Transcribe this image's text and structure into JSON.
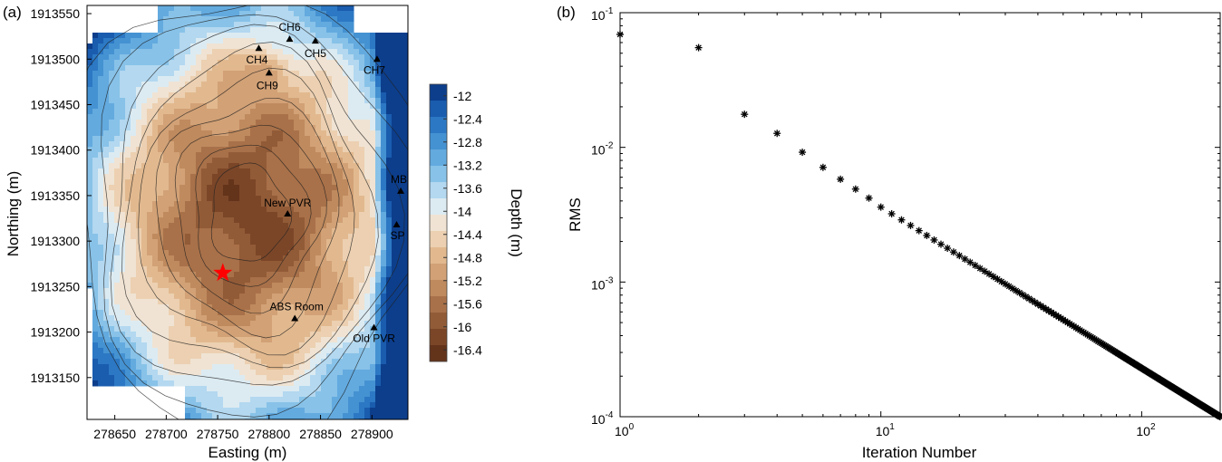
{
  "panels": {
    "a_label": "(a)",
    "b_label": "(b)"
  },
  "chart_data": [
    {
      "type": "heatmap",
      "panel": "(a)",
      "xlabel": "Easting (m)",
      "ylabel": "Northing (m)",
      "x_ticks": [
        "278650",
        "278700",
        "278750",
        "278800",
        "278850",
        "278900"
      ],
      "x_tick_values": [
        278650,
        278700,
        278750,
        278800,
        278850,
        278900
      ],
      "y_ticks": [
        "1913550",
        "1913500",
        "1913450",
        "1913400",
        "1913350",
        "1913300",
        "1913250",
        "1913200",
        "1913150"
      ],
      "y_tick_values": [
        1913550,
        1913500,
        1913450,
        1913400,
        1913350,
        1913300,
        1913250,
        1913200,
        1913150
      ],
      "xlim": [
        278623,
        278935
      ],
      "ylim": [
        1913104,
        1913559
      ],
      "colorbar": {
        "label": "Depth (m)",
        "ticks": [
          "-12",
          "-12.4",
          "-12.8",
          "-13.2",
          "-13.6",
          "-14",
          "-14.4",
          "-14.8",
          "-15.2",
          "-15.6",
          "-16",
          "-16.4"
        ],
        "range": [
          -16.6,
          -11.8
        ],
        "colors": [
          "#0c3e8c",
          "#1a5cae",
          "#2c78c4",
          "#4592d2",
          "#63aadf",
          "#88c2e8",
          "#b3d8f0",
          "#dcebf2",
          "#f0e3d3",
          "#ecd0b1",
          "#e2b98f",
          "#d2a176",
          "#bf8a5e",
          "#a97149",
          "#925b37",
          "#7b4628",
          "#63331a"
        ]
      },
      "sites": [
        {
          "name": "CH6",
          "x": 278820,
          "y": 1913522
        },
        {
          "name": "CH5",
          "x": 278845,
          "y": 1913520
        },
        {
          "name": "CH4",
          "x": 278790,
          "y": 1913512
        },
        {
          "name": "CH7",
          "x": 278905,
          "y": 1913500
        },
        {
          "name": "CH9",
          "x": 278800,
          "y": 1913485
        },
        {
          "name": "MB",
          "x": 278928,
          "y": 1913355
        },
        {
          "name": "New PVR",
          "x": 278818,
          "y": 1913330
        },
        {
          "name": "SP",
          "x": 278924,
          "y": 1913318
        },
        {
          "name": "ABS Room",
          "x": 278825,
          "y": 1913215
        },
        {
          "name": "Old PVR",
          "x": 278902,
          "y": 1913205
        }
      ],
      "star": {
        "x": 278755,
        "y": 1913265,
        "color": "#ff0000"
      }
    },
    {
      "type": "scatter",
      "panel": "(b)",
      "xlabel": "Iteration Number",
      "ylabel": "RMS",
      "xscale": "log",
      "yscale": "log",
      "xlim": [
        1,
        200
      ],
      "ylim": [
        0.0001,
        0.1
      ],
      "x_ticks": [
        {
          "base": "10",
          "exp": "0",
          "value": 1
        },
        {
          "base": "10",
          "exp": "1",
          "value": 10
        },
        {
          "base": "10",
          "exp": "2",
          "value": 100
        }
      ],
      "y_ticks": [
        {
          "base": "10",
          "exp": "-1",
          "value": 0.1
        },
        {
          "base": "10",
          "exp": "-2",
          "value": 0.01
        },
        {
          "base": "10",
          "exp": "-3",
          "value": 0.001
        },
        {
          "base": "10",
          "exp": "-4",
          "value": 0.0001
        }
      ],
      "marker": "*",
      "points_explicit": [
        [
          1,
          0.069
        ],
        [
          2,
          0.055
        ],
        [
          3,
          0.0176
        ],
        [
          4,
          0.0127
        ],
        [
          5,
          0.0092
        ],
        [
          6,
          0.0071
        ],
        [
          7,
          0.0058
        ],
        [
          8,
          0.0049
        ],
        [
          9,
          0.0042
        ],
        [
          10,
          0.0036
        ]
      ],
      "points_trend": {
        "x_from": 11,
        "x_to": 200,
        "rms_at_10": 0.0036,
        "rms_at_200": 0.0001
      }
    }
  ]
}
